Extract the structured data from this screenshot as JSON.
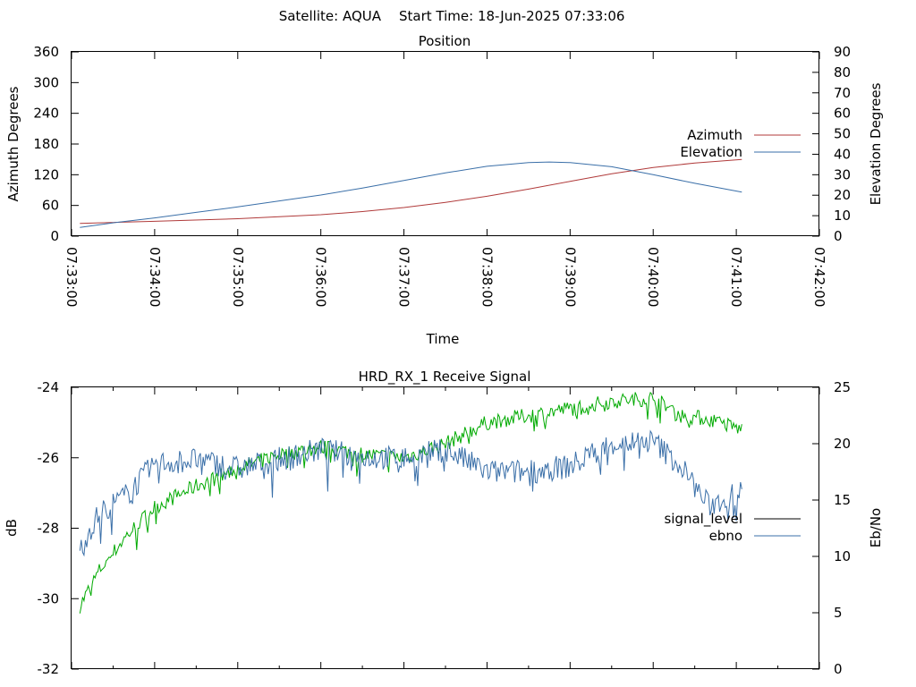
{
  "header": {
    "satellite": "Satellite: AQUA",
    "start_time": "Start Time: 18-Jun-2025 07:33:06"
  },
  "chart_data": [
    {
      "type": "line",
      "title": "Position",
      "xlabel": "Time",
      "ylabel": "Azimuth Degrees",
      "y2label": "Elevation Degrees",
      "xlim": [
        "07:33:00",
        "07:42:00"
      ],
      "ylim": [
        0,
        360
      ],
      "y2lim": [
        0,
        90
      ],
      "xticks": [
        "07:33:00",
        "07:34:00",
        "07:35:00",
        "07:36:00",
        "07:37:00",
        "07:38:00",
        "07:39:00",
        "07:40:00",
        "07:41:00",
        "07:42:00"
      ],
      "yticks": [
        "0",
        "60",
        "120",
        "180",
        "240",
        "300",
        "360"
      ],
      "y2ticks": [
        "0",
        "10",
        "20",
        "30",
        "40",
        "50",
        "60",
        "70",
        "80",
        "90"
      ],
      "grid": false,
      "legend": "right",
      "colors": {
        "Azimuth": "#b03a3a",
        "Elevation": "#3a6fa8"
      },
      "series": [
        {
          "name": "Azimuth",
          "axis": "left",
          "x": [
            "07:33:06",
            "07:34:00",
            "07:35:00",
            "07:36:00",
            "07:36:30",
            "07:37:00",
            "07:37:30",
            "07:38:00",
            "07:38:30",
            "07:39:00",
            "07:39:30",
            "07:40:00",
            "07:40:30",
            "07:41:04"
          ],
          "values": [
            25,
            29,
            34,
            42,
            48,
            56,
            66,
            78,
            92,
            107,
            122,
            134,
            143,
            150
          ]
        },
        {
          "name": "Elevation",
          "axis": "right",
          "x": [
            "07:33:06",
            "07:33:30",
            "07:34:00",
            "07:34:30",
            "07:35:00",
            "07:35:30",
            "07:36:00",
            "07:36:30",
            "07:37:00",
            "07:37:30",
            "07:38:00",
            "07:38:30",
            "07:38:45",
            "07:39:00",
            "07:39:30",
            "07:40:00",
            "07:40:30",
            "07:41:04"
          ],
          "values": [
            4.3,
            6.5,
            8.9,
            11.6,
            14.3,
            17.2,
            20.1,
            23.5,
            27.2,
            30.9,
            34.1,
            35.9,
            36.2,
            35.9,
            33.9,
            30.0,
            25.8,
            21.5
          ]
        }
      ]
    },
    {
      "type": "line",
      "title": "HRD_RX_1 Receive Signal",
      "xlabel": "",
      "ylabel": "dB",
      "y2label": "Eb/No",
      "xlim": [
        "07:33:00",
        "07:42:00"
      ],
      "ylim": [
        -32,
        -24
      ],
      "y2lim": [
        0,
        25
      ],
      "yticks": [
        "-32",
        "-30",
        "-28",
        "-26",
        "-24"
      ],
      "y2ticks": [
        "0",
        "5",
        "10",
        "15",
        "20",
        "25"
      ],
      "grid": false,
      "legend": "right",
      "colors": {
        "signal_level": "#000000",
        "ebno": "#3a6fa8",
        "noisy_green": "#00aa00"
      },
      "series": [
        {
          "name": "signal_level",
          "axis": "left",
          "x": [
            "07:33:06",
            "07:33:20",
            "07:33:40",
            "07:34:00",
            "07:34:30",
            "07:35:00",
            "07:35:30",
            "07:36:00",
            "07:36:30",
            "07:37:00",
            "07:37:30",
            "07:38:00",
            "07:38:30",
            "07:39:00",
            "07:39:30",
            "07:40:00",
            "07:40:20",
            "07:40:40",
            "07:41:04"
          ],
          "values": [
            -30.2,
            -29.2,
            -28.2,
            -27.4,
            -26.8,
            -26.3,
            -25.9,
            -25.7,
            -25.9,
            -26.0,
            -25.6,
            -25.0,
            -24.8,
            -24.6,
            -24.4,
            -24.3,
            -24.8,
            -24.9,
            -25.2
          ]
        },
        {
          "name": "ebno",
          "axis": "right",
          "x": [
            "07:33:06",
            "07:33:20",
            "07:33:40",
            "07:34:00",
            "07:34:30",
            "07:35:00",
            "07:35:30",
            "07:36:00",
            "07:36:30",
            "07:37:00",
            "07:37:30",
            "07:38:00",
            "07:38:30",
            "07:39:00",
            "07:39:30",
            "07:40:00",
            "07:40:20",
            "07:40:40",
            "07:41:04"
          ],
          "values": [
            10.8,
            13.8,
            15.5,
            18.2,
            18.6,
            17.8,
            18.6,
            19.5,
            18.8,
            18.7,
            19.5,
            17.5,
            17.5,
            18.0,
            20.0,
            20.2,
            18.0,
            14.5,
            15.7
          ]
        }
      ]
    }
  ]
}
